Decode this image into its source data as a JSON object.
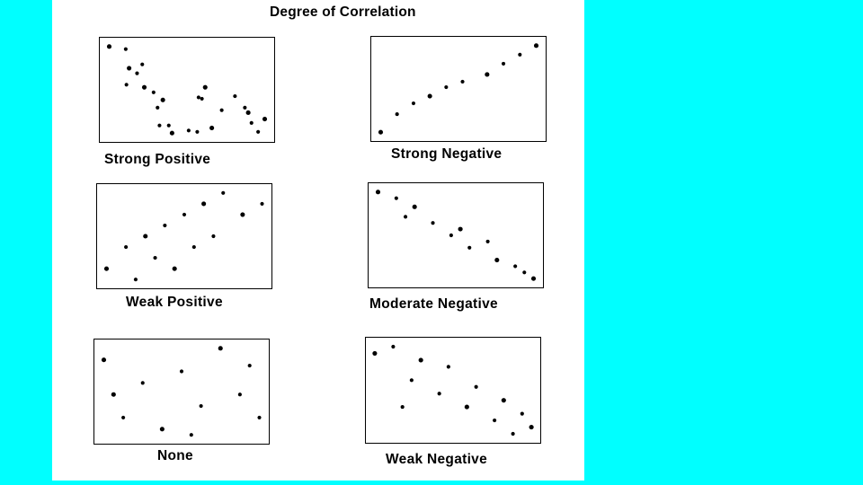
{
  "title": "Degree of Correlation",
  "colors": {
    "background": "#00ffff",
    "panel": "#ffffff",
    "points": "#000000"
  },
  "chart_data": [
    {
      "type": "scatter",
      "label": "Strong Positive",
      "points": [
        [
          0.05,
          0.92
        ],
        [
          0.3,
          0.9
        ],
        [
          0.31,
          0.62
        ],
        [
          0.35,
          0.75
        ],
        [
          0.47,
          0.71
        ],
        [
          0.55,
          0.78
        ],
        [
          0.58,
          0.6
        ],
        [
          0.72,
          0.56
        ],
        [
          0.78,
          0.44
        ],
        [
          0.86,
          0.5
        ],
        [
          0.81,
          0.3
        ],
        [
          0.95,
          0.3
        ],
        [
          1.0,
          0.24
        ],
        [
          1.25,
          0.26
        ],
        [
          1.38,
          0.25
        ],
        [
          1.6,
          0.28
        ],
        [
          1.4,
          0.52
        ],
        [
          1.45,
          0.51
        ],
        [
          1.5,
          0.6
        ],
        [
          1.75,
          0.42
        ],
        [
          2.2,
          0.32
        ],
        [
          2.15,
          0.4
        ],
        [
          1.95,
          0.53
        ],
        [
          2.1,
          0.44
        ],
        [
          2.4,
          0.35
        ],
        [
          2.3,
          0.25
        ]
      ]
    },
    {
      "type": "scatter",
      "label": "Strong Negative",
      "points": [
        [
          0.1,
          0.2
        ],
        [
          0.2,
          0.3
        ],
        [
          0.3,
          0.36
        ],
        [
          0.4,
          0.4
        ],
        [
          0.5,
          0.45
        ],
        [
          0.6,
          0.48
        ],
        [
          0.75,
          0.52
        ],
        [
          0.85,
          0.58
        ],
        [
          0.95,
          0.63
        ],
        [
          1.05,
          0.68
        ]
      ]
    },
    {
      "type": "scatter",
      "label": "Weak Positive",
      "points": [
        [
          0.1,
          0.2
        ],
        [
          0.2,
          0.3
        ],
        [
          0.25,
          0.15
        ],
        [
          0.3,
          0.35
        ],
        [
          0.35,
          0.25
        ],
        [
          0.4,
          0.4
        ],
        [
          0.45,
          0.2
        ],
        [
          0.5,
          0.45
        ],
        [
          0.55,
          0.3
        ],
        [
          0.6,
          0.5
        ],
        [
          0.65,
          0.35
        ],
        [
          0.7,
          0.55
        ],
        [
          0.8,
          0.45
        ],
        [
          0.9,
          0.5
        ]
      ]
    },
    {
      "type": "scatter",
      "label": "Moderate Negative",
      "points": [
        [
          0.1,
          0.9
        ],
        [
          0.2,
          0.85
        ],
        [
          0.25,
          0.7
        ],
        [
          0.3,
          0.78
        ],
        [
          0.4,
          0.65
        ],
        [
          0.5,
          0.55
        ],
        [
          0.55,
          0.6
        ],
        [
          0.6,
          0.45
        ],
        [
          0.7,
          0.5
        ],
        [
          0.75,
          0.35
        ],
        [
          0.85,
          0.3
        ],
        [
          0.9,
          0.25
        ],
        [
          0.95,
          0.2
        ]
      ]
    },
    {
      "type": "scatter",
      "label": "None",
      "points": [
        [
          0.1,
          0.8
        ],
        [
          0.2,
          0.3
        ],
        [
          0.3,
          0.6
        ],
        [
          0.4,
          0.2
        ],
        [
          0.5,
          0.7
        ],
        [
          0.6,
          0.4
        ],
        [
          0.7,
          0.9
        ],
        [
          0.8,
          0.5
        ],
        [
          0.9,
          0.3
        ],
        [
          0.15,
          0.5
        ],
        [
          0.55,
          0.15
        ],
        [
          0.85,
          0.75
        ]
      ]
    },
    {
      "type": "scatter",
      "label": "Weak Negative",
      "points": [
        [
          0.1,
          0.8
        ],
        [
          0.2,
          0.85
        ],
        [
          0.3,
          0.6
        ],
        [
          0.35,
          0.75
        ],
        [
          0.45,
          0.5
        ],
        [
          0.5,
          0.7
        ],
        [
          0.6,
          0.4
        ],
        [
          0.65,
          0.55
        ],
        [
          0.75,
          0.3
        ],
        [
          0.8,
          0.45
        ],
        [
          0.85,
          0.2
        ],
        [
          0.9,
          0.35
        ],
        [
          0.95,
          0.25
        ],
        [
          0.25,
          0.4
        ]
      ]
    }
  ]
}
